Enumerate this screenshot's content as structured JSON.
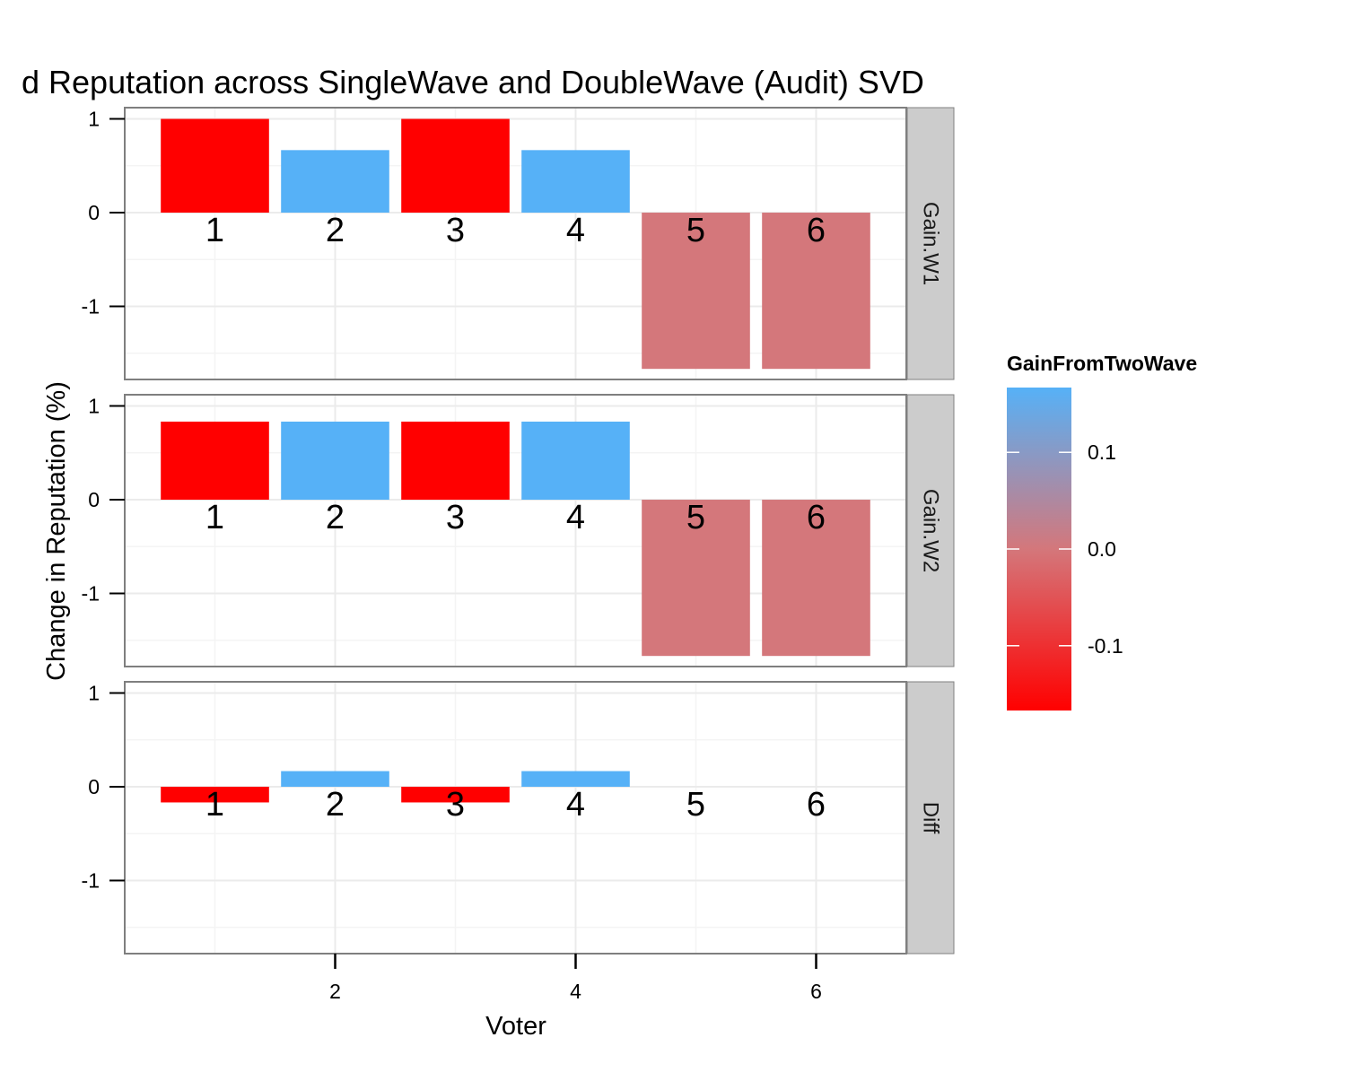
{
  "chart_data": {
    "type": "bar",
    "title": "d Reputation across SingleWave and DoubleWave (Audit) SVD",
    "xlabel": "Voter",
    "ylabel": "Change in Reputation (%)",
    "x": [
      1,
      2,
      3,
      4,
      5,
      6
    ],
    "x_ticks": [
      "2",
      "4",
      "6"
    ],
    "y_ticks": [
      "1",
      "0",
      "-1"
    ],
    "xlim": [
      0.25,
      6.75
    ],
    "ylim": [
      -1.78,
      1.12
    ],
    "grid": true,
    "facet_layout": "rows",
    "panels": [
      {
        "strip_label": "Gain.W1",
        "values": [
          1.0,
          0.667,
          1.0,
          0.667,
          -1.667,
          -1.667
        ],
        "gain_from_two_wave": [
          -0.167,
          0.167,
          -0.167,
          0.167,
          0.0,
          0.0
        ],
        "bar_labels": [
          "1",
          "2",
          "3",
          "4",
          "5",
          "6"
        ]
      },
      {
        "strip_label": "Gain.W2",
        "values": [
          0.833,
          0.833,
          0.833,
          0.833,
          -1.667,
          -1.667
        ],
        "gain_from_two_wave": [
          -0.167,
          0.167,
          -0.167,
          0.167,
          0.0,
          0.0
        ],
        "bar_labels": [
          "1",
          "2",
          "3",
          "4",
          "5",
          "6"
        ]
      },
      {
        "strip_label": "Diff",
        "values": [
          -0.167,
          0.167,
          -0.167,
          0.167,
          0.0,
          0.0
        ],
        "gain_from_two_wave": [
          -0.167,
          0.167,
          -0.167,
          0.167,
          0.0,
          0.0
        ],
        "bar_labels": [
          "1",
          "2",
          "3",
          "4",
          "5",
          "6"
        ]
      }
    ],
    "legend": {
      "title": "GainFromTwoWave",
      "placement": "right",
      "range": [
        -0.167,
        0.167
      ],
      "breaks": [
        0.1,
        0.0,
        -0.1
      ],
      "break_labels": [
        "0.1",
        "0.0",
        "-0.1"
      ],
      "colors": {
        "low": "#ff0000",
        "mid": "#d4777b",
        "high": "#56b1f7"
      }
    }
  }
}
